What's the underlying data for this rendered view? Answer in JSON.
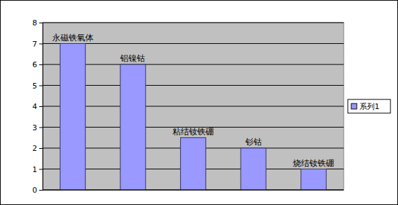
{
  "chart_data": {
    "type": "bar",
    "categories": [
      "永磁铁氧体",
      "铝镍钴",
      "粘结钕铁硼",
      "钐钴",
      "烧结钕铁硼"
    ],
    "series": [
      {
        "name": "系列1",
        "color": "#9999ff",
        "values": [
          7,
          6,
          2.5,
          2,
          1
        ]
      }
    ],
    "ylim": [
      0,
      8
    ],
    "yticks": [
      0,
      1,
      2,
      3,
      4,
      5,
      6,
      7,
      8
    ],
    "grid": true,
    "legend": "right",
    "tick_labels": "y"
  }
}
